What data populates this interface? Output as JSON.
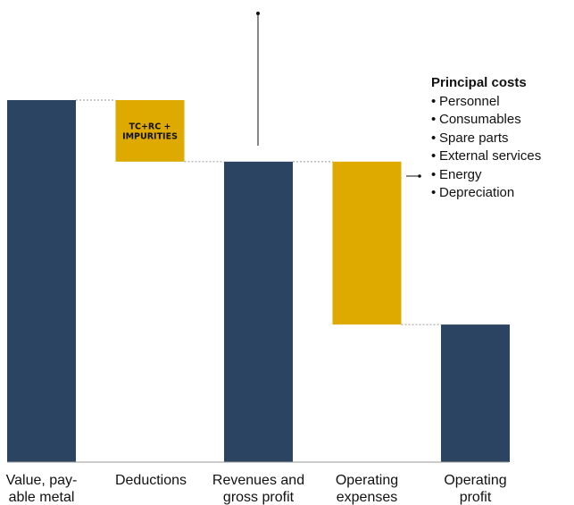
{
  "chart_data": {
    "type": "bar",
    "subtype": "waterfall",
    "categories": [
      [
        "Value, pay-",
        "able metal"
      ],
      [
        "Deductions"
      ],
      [
        "Revenues and",
        "gross profit"
      ],
      [
        "Operating",
        "expenses"
      ],
      [
        "Operating",
        "profit"
      ]
    ],
    "bars": [
      {
        "kind": "total",
        "start": 0,
        "end": 100,
        "color": "#2b4462"
      },
      {
        "kind": "decrease",
        "start": 100,
        "end": 83,
        "color": "#deaa00",
        "label": [
          "TC+RC +",
          "IMPURITIES"
        ]
      },
      {
        "kind": "total",
        "start": 0,
        "end": 83,
        "color": "#2b4462"
      },
      {
        "kind": "decrease",
        "start": 83,
        "end": 38,
        "color": "#deaa00"
      },
      {
        "kind": "total",
        "start": 0,
        "end": 38,
        "color": "#2b4462"
      }
    ],
    "ylim": [
      0,
      100
    ],
    "grid": false,
    "legend": "none",
    "title": "",
    "xlabel": "",
    "ylabel": ""
  },
  "callout": {
    "title": "Principal costs",
    "items": [
      "Personnel",
      "Consumables",
      "Spare parts",
      "External services",
      "Energy",
      "Depreciation"
    ],
    "bullet": "•"
  },
  "colors": {
    "dark": "#2b4462",
    "gold": "#deaa00",
    "connector": "#9a9a9a"
  }
}
